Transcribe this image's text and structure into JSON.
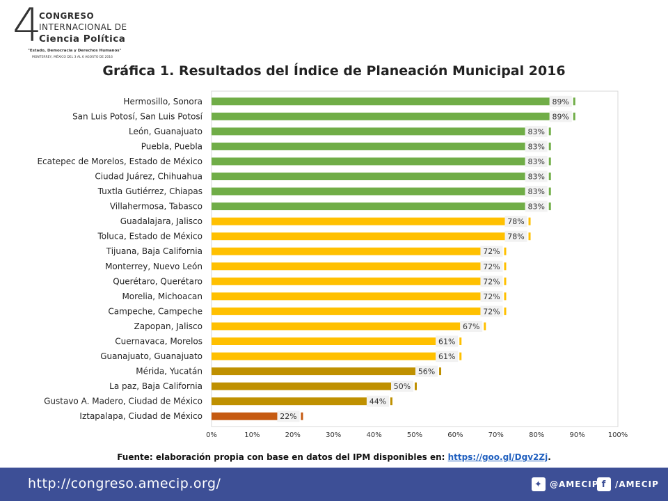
{
  "logo": {
    "number": "4",
    "line1": "Congreso",
    "line2": "Internacional de",
    "line3": "Ciencia Política",
    "tagline": "\"Estado, Democracia y Derechos Humanos\"",
    "location": "MONTERREY, MÉXICO DEL 3 AL 6 AGOSTO DE 2016"
  },
  "chart_data": {
    "type": "bar",
    "orientation": "horizontal",
    "title": "Gráfica 1. Resultados del Índice de Planeación Municipal 2016",
    "categories": [
      "Hermosillo, Sonora",
      "San Luis Potosí, San Luis Potosí",
      "León, Guanajuato",
      "Puebla, Puebla",
      "Ecatepec de Morelos, Estado de México",
      "Ciudad Juárez, Chihuahua",
      "Tuxtla Gutiérrez, Chiapas",
      "Villahermosa, Tabasco",
      "Guadalajara, Jalisco",
      "Toluca, Estado de México",
      "Tijuana, Baja California",
      "Monterrey, Nuevo León",
      "Querétaro, Querétaro",
      "Morelia, Michoacan",
      "Campeche, Campeche",
      "Zapopan, Jalisco",
      "Cuernavaca, Morelos",
      "Guanajuato, Guanajuato",
      "Mérida, Yucatán",
      "La paz, Baja California",
      "Gustavo A. Madero, Ciudad de México",
      "Iztapalapa, Ciudad de México"
    ],
    "values": [
      89,
      89,
      83,
      83,
      83,
      83,
      83,
      83,
      78,
      78,
      72,
      72,
      72,
      72,
      72,
      67,
      61,
      61,
      56,
      50,
      44,
      22
    ],
    "data_labels": [
      "89%",
      "89%",
      "83%",
      "83%",
      "83%",
      "83%",
      "83%",
      "83%",
      "78%",
      "78%",
      "72%",
      "72%",
      "72%",
      "72%",
      "72%",
      "67%",
      "61%",
      "61%",
      "56%",
      "50%",
      "44%",
      "22%"
    ],
    "colors": [
      "#70ad47",
      "#70ad47",
      "#70ad47",
      "#70ad47",
      "#70ad47",
      "#70ad47",
      "#70ad47",
      "#70ad47",
      "#ffc000",
      "#ffc000",
      "#ffc000",
      "#ffc000",
      "#ffc000",
      "#ffc000",
      "#ffc000",
      "#ffc000",
      "#ffc000",
      "#ffc000",
      "#bf9000",
      "#bf9000",
      "#bf9000",
      "#c55a11"
    ],
    "xlim": [
      0,
      100
    ],
    "xticks": [
      "0%",
      "10%",
      "20%",
      "30%",
      "40%",
      "50%",
      "60%",
      "70%",
      "80%",
      "90%",
      "100%"
    ],
    "grid": false
  },
  "source": {
    "text": "Fuente: elaboración propia con base en datos del IPM disponibles en: ",
    "link": "https://goo.gl/Dgv2Zj",
    "suffix": "."
  },
  "footer": {
    "url": "http://congreso.amecip.org/",
    "twitter": "@AMECIP",
    "facebook": "/AMECIP",
    "twitter_icon": "twitter-icon",
    "facebook_icon": "facebook-icon",
    "color": "#3d4f96"
  }
}
